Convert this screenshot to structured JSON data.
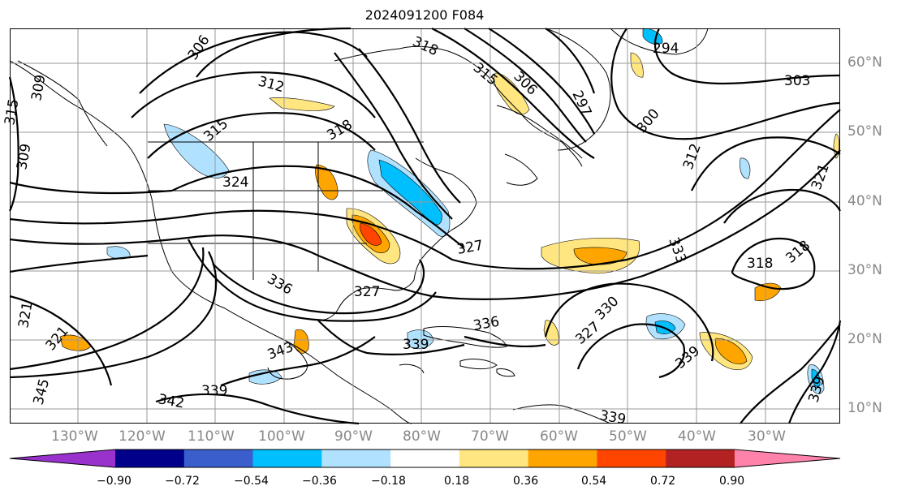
{
  "title": "2024091200 F084",
  "longitude_labels": [
    "130°W",
    "120°W",
    "110°W",
    "100°W",
    "90°W",
    "80°W",
    "70°W",
    "60°W",
    "50°W",
    "40°W",
    "30°W"
  ],
  "latitude_labels": [
    "60°N",
    "50°N",
    "40°N",
    "30°N",
    "20°N",
    "10°N"
  ],
  "contour_labels": [
    "294",
    "303",
    "297",
    "306",
    "315",
    "318",
    "312",
    "300",
    "306",
    "312",
    "315",
    "309",
    "309",
    "318",
    "324",
    "327",
    "336",
    "327",
    "333",
    "318",
    "318",
    "321",
    "321",
    "330",
    "327",
    "336",
    "339",
    "339",
    "342",
    "339",
    "343",
    "339",
    "339",
    "321",
    "315",
    "345"
  ],
  "colorbar": {
    "tick_labels": [
      "−0.90",
      "−0.72",
      "−0.54",
      "−0.36",
      "−0.18",
      "0.18",
      "0.36",
      "0.54",
      "0.72",
      "0.90"
    ],
    "colors": [
      "#9932cc",
      "#00008b",
      "#3a5fcd",
      "#00bfff",
      "#b0e2ff",
      "#ffffff",
      "#ffe680",
      "#ffa500",
      "#ff4500",
      "#b22222",
      "#ff82ab"
    ]
  },
  "colors": {
    "fill_low": "#b0e2ff",
    "fill_mid_low": "#00bfff",
    "fill_high": "#ffe680",
    "fill_mid_high": "#ffa500",
    "fill_max": "#ff4500",
    "grid": "#999999",
    "contour": "#000000"
  }
}
